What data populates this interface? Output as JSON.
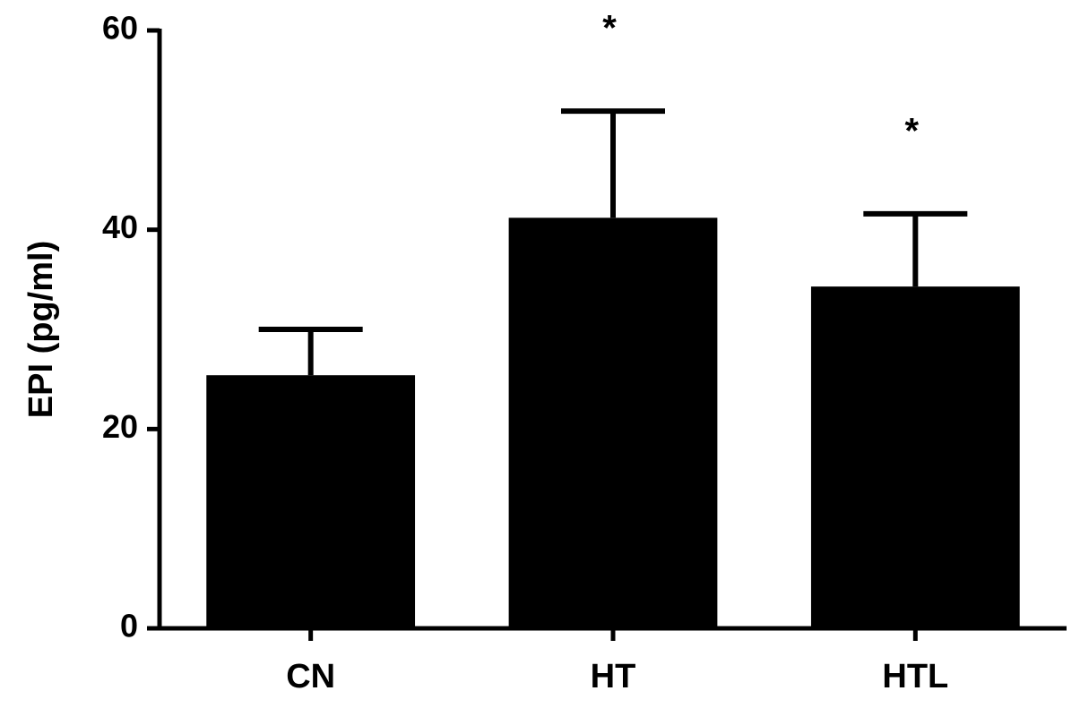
{
  "chart_data": {
    "type": "bar",
    "y_label": "EPI (pg/ml)",
    "categories": [
      "CN",
      "HT",
      "HTL"
    ],
    "values": [
      25.4,
      41.2,
      34.3
    ],
    "errors": [
      4.6,
      10.7,
      7.3
    ],
    "significance": [
      null,
      "*",
      "*"
    ],
    "color": "#000000",
    "ylim": [
      0,
      60
    ],
    "yticks": [
      0,
      20,
      40,
      60
    ],
    "grid": false
  }
}
